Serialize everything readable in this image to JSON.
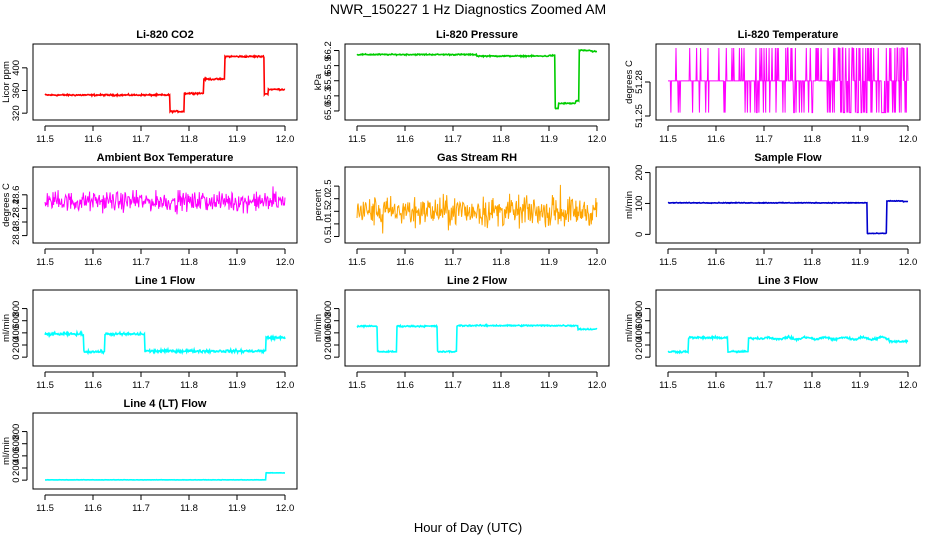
{
  "figure": {
    "title": "NWR_150227  1 Hz Diagnostics Zoomed AM",
    "xlabel": "Hour of Day (UTC)"
  },
  "chart_data": [
    {
      "type": "line",
      "title": "Li-820 CO2",
      "ylabel": "Licor ppm",
      "color": "#ff0000",
      "xlim": [
        11.5,
        12.0
      ],
      "ylim": [
        315,
        435
      ],
      "xticks": [
        11.5,
        11.6,
        11.7,
        11.8,
        11.9,
        12.0
      ],
      "xtick_labels": [
        "11.5",
        "11.6",
        "11.7",
        "11.8",
        "11.9",
        "12.0"
      ],
      "yticks": [
        320,
        360,
        400
      ],
      "ytick_labels": [
        "320",
        "360",
        "400"
      ],
      "series": [
        {
          "steps": [
            [
              11.5,
              352
            ],
            [
              11.76,
              323
            ],
            [
              11.79,
              355
            ],
            [
              11.83,
              380
            ],
            [
              11.875,
              420
            ],
            [
              11.957,
              354
            ],
            [
              11.965,
              362
            ],
            [
              12.0,
              362
            ]
          ],
          "noise": 1.2
        }
      ]
    },
    {
      "type": "line",
      "title": "Li-820 Pressure",
      "ylabel": "kPa",
      "color": "#00cc00",
      "xlim": [
        11.5,
        12.0
      ],
      "ylim": [
        64.9,
        66.25
      ],
      "xticks": [
        11.5,
        11.6,
        11.7,
        11.8,
        11.9,
        12.0
      ],
      "xtick_labels": [
        "11.5",
        "11.6",
        "11.7",
        "11.8",
        "11.9",
        "12.0"
      ],
      "yticks": [
        65.0,
        65.3,
        65.6,
        65.9,
        66.2
      ],
      "ytick_labels": [
        "65.0",
        "65.3",
        "65.6",
        "65.9",
        "66.2"
      ],
      "series": [
        {
          "steps": [
            [
              11.5,
              66.12
            ],
            [
              11.75,
              66.09
            ],
            [
              11.9,
              66.1
            ],
            [
              11.912,
              65.05
            ],
            [
              11.92,
              65.15
            ],
            [
              11.955,
              65.2
            ],
            [
              11.962,
              66.2
            ],
            [
              11.99,
              66.18
            ],
            [
              12.0,
              66.18
            ]
          ],
          "noise": 0.01
        }
      ]
    },
    {
      "type": "line",
      "title": "Li-820 Temperature",
      "ylabel": "degrees C",
      "color": "#ff00ff",
      "xlim": [
        11.5,
        12.0
      ],
      "ylim": [
        51.25,
        51.31
      ],
      "xticks": [
        11.5,
        11.6,
        11.7,
        11.8,
        11.9,
        12.0
      ],
      "xtick_labels": [
        "11.5",
        "11.6",
        "11.7",
        "11.8",
        "11.9",
        "12.0"
      ],
      "yticks": [
        51.25,
        51.28
      ],
      "ytick_labels": [
        "51.25",
        "51.28"
      ],
      "series": [
        {
          "levels": [
            51.253,
            51.281,
            51.31
          ],
          "base": 51.281
        }
      ]
    },
    {
      "type": "line",
      "title": "Ambient Box Temperature",
      "ylabel": "degrees C",
      "color": "#ff00ff",
      "xlim": [
        11.5,
        12.0
      ],
      "ylim": [
        27.95,
        28.95
      ],
      "xticks": [
        11.5,
        11.6,
        11.7,
        11.8,
        11.9,
        12.0
      ],
      "xtick_labels": [
        "11.5",
        "11.6",
        "11.7",
        "11.8",
        "11.9",
        "12.0"
      ],
      "yticks": [
        28.0,
        28.2,
        28.4,
        28.6
      ],
      "ytick_labels": [
        "28.0",
        "28.2",
        "28.4",
        "28.6"
      ],
      "series": [
        {
          "mean": 28.5,
          "noise": 0.12
        }
      ]
    },
    {
      "type": "line",
      "title": "Gas Stream RH",
      "ylabel": "percent",
      "color": "#ffa500",
      "xlim": [
        11.5,
        12.0
      ],
      "ylim": [
        0.4,
        3.1
      ],
      "xticks": [
        11.5,
        11.6,
        11.7,
        11.8,
        11.9,
        12.0
      ],
      "xtick_labels": [
        "11.5",
        "11.6",
        "11.7",
        "11.8",
        "11.9",
        "12.0"
      ],
      "yticks": [
        0.5,
        1.0,
        1.5,
        2.0,
        2.5
      ],
      "ytick_labels": [
        "0.5",
        "1.0",
        "1.5",
        "2.0",
        "2.5"
      ],
      "series": [
        {
          "mean": 1.5,
          "noise": 0.5
        }
      ]
    },
    {
      "type": "line",
      "title": "Sample Flow",
      "ylabel": "ml/min",
      "color": "#0000cc",
      "xlim": [
        11.5,
        12.0
      ],
      "ylim": [
        -15,
        205
      ],
      "xticks": [
        11.5,
        11.6,
        11.7,
        11.8,
        11.9,
        12.0
      ],
      "xtick_labels": [
        "11.5",
        "11.6",
        "11.7",
        "11.8",
        "11.9",
        "12.0"
      ],
      "yticks": [
        0,
        100,
        200
      ],
      "ytick_labels": [
        "0",
        "100",
        "200"
      ],
      "series": [
        {
          "steps": [
            [
              11.5,
              102
            ],
            [
              11.915,
              3
            ],
            [
              11.955,
              108
            ],
            [
              11.99,
              106
            ],
            [
              12.0,
              106
            ]
          ],
          "noise": 1.0
        }
      ]
    },
    {
      "type": "line",
      "title": "Line 1 Flow",
      "ylabel": "ml/min",
      "color": "#00ffff",
      "xlim": [
        11.5,
        12.0
      ],
      "ylim": [
        -80,
        1040
      ],
      "xticks": [
        11.5,
        11.6,
        11.7,
        11.8,
        11.9,
        12.0
      ],
      "xtick_labels": [
        "11.5",
        "11.6",
        "11.7",
        "11.8",
        "11.9",
        "12.0"
      ],
      "yticks": [
        0,
        200,
        400,
        600,
        800
      ],
      "ytick_labels": [
        "0",
        "200",
        "400",
        "600",
        "800"
      ],
      "series": [
        {
          "steps": [
            [
              11.5,
              380
            ],
            [
              11.58,
              90
            ],
            [
              11.625,
              380
            ],
            [
              11.708,
              100
            ],
            [
              11.96,
              320
            ],
            [
              11.99,
              320
            ],
            [
              12.0,
              320
            ]
          ],
          "noise": 20
        }
      ]
    },
    {
      "type": "line",
      "title": "Line 2 Flow",
      "ylabel": "ml/min",
      "color": "#00ffff",
      "xlim": [
        11.5,
        12.0
      ],
      "ylim": [
        -80,
        1040
      ],
      "xticks": [
        11.5,
        11.6,
        11.7,
        11.8,
        11.9,
        12.0
      ],
      "xtick_labels": [
        "11.5",
        "11.6",
        "11.7",
        "11.8",
        "11.9",
        "12.0"
      ],
      "yticks": [
        0,
        200,
        400,
        600,
        800
      ],
      "ytick_labels": [
        "0",
        "200",
        "400",
        "600",
        "800"
      ],
      "series": [
        {
          "steps": [
            [
              11.5,
              510
            ],
            [
              11.542,
              90
            ],
            [
              11.583,
              510
            ],
            [
              11.667,
              90
            ],
            [
              11.708,
              520
            ],
            [
              11.96,
              460
            ],
            [
              11.99,
              460
            ],
            [
              12.0,
              460
            ]
          ],
          "noise": 10
        }
      ]
    },
    {
      "type": "line",
      "title": "Line 3 Flow",
      "ylabel": "ml/min",
      "color": "#00ffff",
      "xlim": [
        11.5,
        12.0
      ],
      "ylim": [
        -80,
        1040
      ],
      "xticks": [
        11.5,
        11.6,
        11.7,
        11.8,
        11.9,
        12.0
      ],
      "xtick_labels": [
        "11.5",
        "11.6",
        "11.7",
        "11.8",
        "11.9",
        "12.0"
      ],
      "yticks": [
        0,
        200,
        400,
        600,
        800
      ],
      "ytick_labels": [
        "0",
        "200",
        "400",
        "600",
        "800"
      ],
      "series": [
        {
          "steps": [
            [
              11.5,
              90
            ],
            [
              11.542,
              320
            ],
            [
              11.625,
              90
            ],
            [
              11.667,
              310
            ],
            [
              11.96,
              260
            ],
            [
              11.99,
              260
            ],
            [
              12.0,
              260
            ]
          ],
          "noise": 15
        }
      ]
    },
    {
      "type": "line",
      "title": "Line 4 (LT) Flow",
      "ylabel": "ml/min",
      "color": "#00ffff",
      "xlim": [
        11.5,
        12.0
      ],
      "ylim": [
        -80,
        1040
      ],
      "xticks": [
        11.5,
        11.6,
        11.7,
        11.8,
        11.9,
        12.0
      ],
      "xtick_labels": [
        "11.5",
        "11.6",
        "11.7",
        "11.8",
        "11.9",
        "12.0"
      ],
      "yticks": [
        0,
        200,
        400,
        600,
        800
      ],
      "ytick_labels": [
        "0",
        "200",
        "400",
        "600",
        "800"
      ],
      "series": [
        {
          "steps": [
            [
              11.5,
              5
            ],
            [
              11.96,
              120
            ],
            [
              11.99,
              120
            ],
            [
              12.0,
              120
            ]
          ],
          "noise": 2
        }
      ]
    }
  ]
}
